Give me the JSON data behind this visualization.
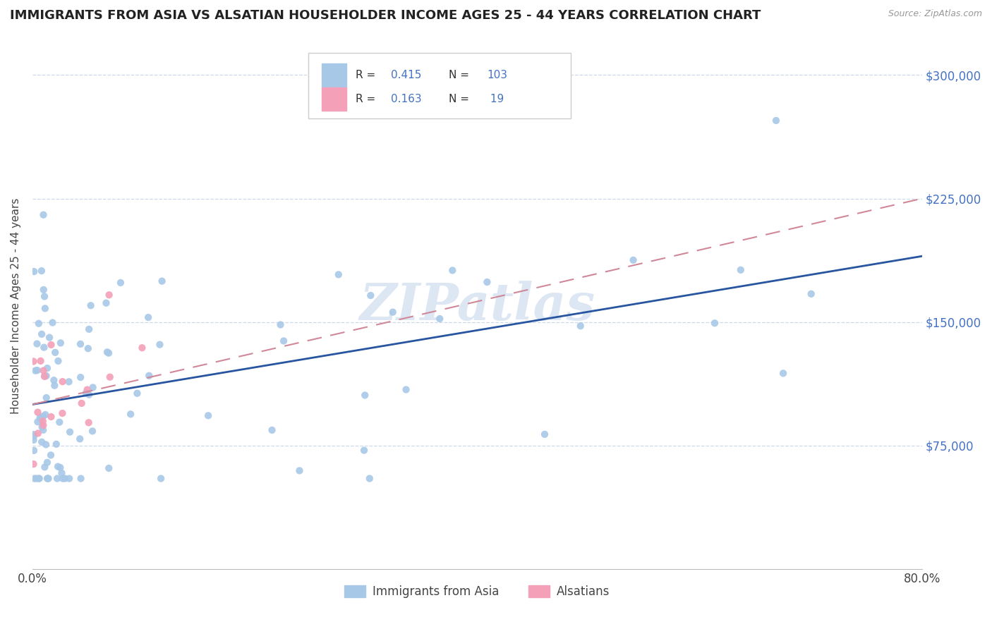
{
  "title": "IMMIGRANTS FROM ASIA VS ALSATIAN HOUSEHOLDER INCOME AGES 25 - 44 YEARS CORRELATION CHART",
  "source": "Source: ZipAtlas.com",
  "ylabel": "Householder Income Ages 25 - 44 years",
  "ytick_values": [
    75000,
    150000,
    225000,
    300000
  ],
  "legend_labels": [
    "Immigrants from Asia",
    "Alsatians"
  ],
  "color_blue": "#a8c8e8",
  "color_pink": "#f4a0b8",
  "color_blue_text": "#4472c4",
  "line_blue": "#2855a0",
  "line_pink": "#d08898",
  "watermark": "ZIPatlas",
  "xlim": [
    0.0,
    0.8
  ],
  "ylim": [
    0,
    320000
  ],
  "background_color": "#ffffff",
  "grid_color": "#c8d4e8",
  "blue_line_y0": 100000,
  "blue_line_y1": 190000,
  "pink_line_y0": 100000,
  "pink_line_y1": 225000
}
